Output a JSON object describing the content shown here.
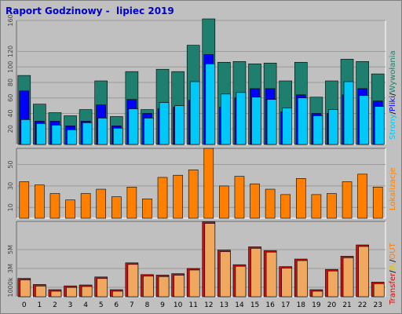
{
  "title": "Raport Godzinowy -  lipiec 2019",
  "colors": {
    "visits": "#1f7f6f",
    "pages": "#0000ff",
    "files": "#00c8f8",
    "sites": "#ff8000",
    "kbytes": "#cc1010",
    "kbytes_light": "#f0a860",
    "legend_sep": "#000000",
    "legend_in": "#e8c000",
    "legend_out": "#f08020"
  },
  "legend": {
    "top": {
      "strony": "Strony",
      "sep1": "/",
      "pliki": "Pliki",
      "sep2": "/",
      "wywolania": "Wywołania"
    },
    "middle": {
      "lokalizacje": "Lokalizacje"
    },
    "bottom": {
      "transfer": "Transfer",
      "sep1": "/",
      "in": "IN",
      "sep2": "/",
      "out": "OUT"
    }
  },
  "chart_data": [
    {
      "type": "bar",
      "title": "",
      "categories": [
        "0",
        "1",
        "2",
        "3",
        "4",
        "5",
        "6",
        "7",
        "8",
        "9",
        "10",
        "11",
        "12",
        "13",
        "14",
        "15",
        "16",
        "17",
        "18",
        "19",
        "20",
        "21",
        "22",
        "23"
      ],
      "ylim": [
        0,
        160
      ],
      "yticks": [
        "20",
        "40",
        "60",
        "80",
        "100",
        "120",
        "160"
      ],
      "series": [
        {
          "name": "Wywołania",
          "values": [
            89,
            52,
            41,
            37,
            45,
            82,
            36,
            94,
            45,
            97,
            94,
            128,
            162,
            106,
            107,
            104,
            105,
            82,
            106,
            61,
            82,
            110,
            107,
            91
          ]
        },
        {
          "name": "Pliki",
          "values": [
            69,
            30,
            30,
            24,
            30,
            51,
            24,
            58,
            40,
            46,
            48,
            57,
            116,
            48,
            60,
            72,
            72,
            42,
            64,
            40,
            40,
            64,
            72,
            56
          ]
        },
        {
          "name": "Strony",
          "values": [
            32,
            27,
            25,
            19,
            28,
            34,
            21,
            46,
            34,
            54,
            50,
            81,
            104,
            65,
            67,
            61,
            58,
            47,
            60,
            37,
            45,
            81,
            63,
            49
          ]
        }
      ]
    },
    {
      "type": "bar",
      "title": "",
      "categories": [
        "0",
        "1",
        "2",
        "3",
        "4",
        "5",
        "6",
        "7",
        "8",
        "9",
        "10",
        "11",
        "12",
        "13",
        "14",
        "15",
        "16",
        "17",
        "18",
        "19",
        "20",
        "21",
        "22",
        "23"
      ],
      "ylim": [
        0,
        65
      ],
      "yticks": [
        "10",
        "30",
        "50"
      ],
      "series": [
        {
          "name": "Lokalizacje",
          "values": [
            34,
            31,
            23,
            17,
            23,
            27,
            20,
            29,
            18,
            38,
            40,
            45,
            65,
            30,
            39,
            32,
            27,
            22,
            37,
            22,
            23,
            34,
            41,
            29
          ]
        }
      ]
    },
    {
      "type": "bar",
      "title": "",
      "categories": [
        "0",
        "1",
        "2",
        "3",
        "4",
        "5",
        "6",
        "7",
        "8",
        "9",
        "10",
        "11",
        "12",
        "13",
        "14",
        "15",
        "16",
        "17",
        "18",
        "19",
        "20",
        "21",
        "22",
        "23"
      ],
      "ylim": [
        0,
        8000
      ],
      "yticks": [
        "1000k",
        "3M",
        "5M"
      ],
      "series": [
        {
          "name": "Transfer",
          "values": [
            1950,
            1300,
            750,
            1150,
            1250,
            2100,
            750,
            3600,
            2350,
            2300,
            2450,
            3000,
            7950,
            4950,
            3400,
            5300,
            4900,
            3200,
            4000,
            750,
            2900,
            4300,
            5500,
            1550
          ]
        }
      ]
    }
  ]
}
